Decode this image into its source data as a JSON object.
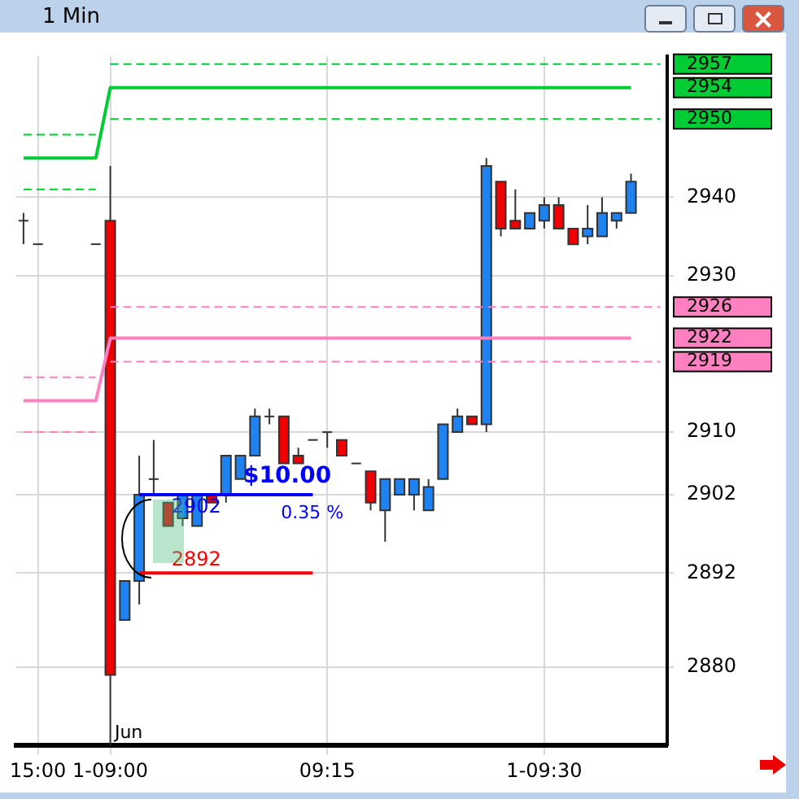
{
  "chart_data": {
    "type": "candlestick",
    "title": "1 Min",
    "categories": [
      null,
      "15:00",
      null,
      null,
      null,
      null,
      "1-09:00",
      null,
      null,
      null,
      null,
      null,
      null,
      null,
      null,
      null,
      null,
      null,
      null,
      null,
      null,
      "09:15",
      null,
      null,
      null,
      null,
      null,
      null,
      null,
      null,
      null,
      null,
      null,
      null,
      null,
      null,
      "1-09:30",
      null,
      null,
      null,
      null,
      null,
      null,
      null,
      null
    ],
    "ohlc": [
      [
        2937,
        2938,
        2934,
        2937
      ],
      [
        2934,
        2934,
        2934,
        2934
      ],
      null,
      null,
      null,
      [
        2934,
        2934,
        2934,
        2934
      ],
      [
        2937,
        2944,
        2870,
        2879
      ],
      [
        2886,
        2891,
        2886,
        2891
      ],
      [
        2891,
        2907,
        2888,
        2902
      ],
      [
        2904,
        2909,
        2902,
        2904
      ],
      [
        2901,
        2901,
        2898,
        2898
      ],
      [
        2899,
        2902,
        2898,
        2902
      ],
      [
        2898,
        2902,
        2898,
        2902
      ],
      [
        2902,
        2902,
        2901,
        2901
      ],
      [
        2902,
        2907,
        2901,
        2907
      ],
      [
        2904,
        2907,
        2904,
        2907
      ],
      [
        2907,
        2913,
        2907,
        2912
      ],
      [
        2912,
        2913,
        2911,
        2912
      ],
      [
        2912,
        2912,
        2906,
        2906
      ],
      [
        2907,
        2908,
        2906,
        2906
      ],
      [
        2909,
        2909,
        2909,
        2909
      ],
      [
        2910,
        2910,
        2908,
        2910
      ],
      [
        2909,
        2909,
        2907,
        2907
      ],
      [
        2906,
        2906,
        2906,
        2906
      ],
      [
        2905,
        2905,
        2900,
        2901
      ],
      [
        2900,
        2904,
        2896,
        2904
      ],
      [
        2902,
        2904,
        2902,
        2904
      ],
      [
        2902,
        2904,
        2900,
        2904
      ],
      [
        2900,
        2904,
        2900,
        2903
      ],
      [
        2904,
        2911,
        2904,
        2911
      ],
      [
        2910,
        2913,
        2910,
        2912
      ],
      [
        2912,
        2912,
        2911,
        2911
      ],
      [
        2911,
        2945,
        2910,
        2944
      ],
      [
        2942,
        2942,
        2935,
        2936
      ],
      [
        2937,
        2941,
        2936,
        2936
      ],
      [
        2936,
        2938,
        2936,
        2938
      ],
      [
        2937,
        2940,
        2936,
        2939
      ],
      [
        2939,
        2940,
        2936,
        2936
      ],
      [
        2936,
        2936,
        2934,
        2934
      ],
      [
        2935,
        2939,
        2934,
        2936
      ],
      [
        2935,
        2940,
        2935,
        2938
      ],
      [
        2937,
        2938,
        2936,
        2938
      ],
      [
        2938,
        2943,
        2938,
        2942
      ],
      null,
      null
    ],
    "colors": [
      "#333333",
      "#333333",
      null,
      null,
      null,
      "#333333",
      "#f00000",
      "#1e82f0",
      "#1e82f0",
      "#333333",
      "#f00000",
      "#1e82f0",
      "#1e82f0",
      "#f00000",
      "#1e82f0",
      "#1e82f0",
      "#1e82f0",
      "#333333",
      "#f00000",
      "#f00000",
      "#333333",
      "#333333",
      "#f00000",
      "#333333",
      "#f00000",
      "#1e82f0",
      "#1e82f0",
      "#1e82f0",
      "#1e82f0",
      "#1e82f0",
      "#1e82f0",
      "#f00000",
      "#1e82f0",
      "#f00000",
      "#f00000",
      "#1e82f0",
      "#1e82f0",
      "#f00000",
      "#f00000",
      "#1e82f0",
      "#1e82f0",
      "#1e82f0",
      "#1e82f0",
      null,
      null
    ],
    "series": [
      {
        "type": "line",
        "color": "#00cc33",
        "values": [
          2945,
          2945,
          2945,
          2945,
          2945,
          2945,
          2954,
          2954,
          2954,
          2954,
          2954,
          2954,
          2954,
          2954,
          2954,
          2954,
          2954,
          2954,
          2954,
          2954,
          2954,
          2954,
          2954,
          2954,
          2954,
          2954,
          2954,
          2954,
          2954,
          2954,
          2954,
          2954,
          2954,
          2954,
          2954,
          2954,
          2954,
          2954,
          2954,
          2954,
          2954,
          2954,
          2954,
          null,
          null
        ]
      },
      {
        "type": "line",
        "color": "#00cc33",
        "line_style": "dashed",
        "values": [
          2948,
          2948,
          2948,
          2948,
          2948,
          2948,
          null,
          null,
          null,
          null,
          null,
          null,
          null,
          null,
          null,
          null,
          null,
          null,
          null,
          null,
          null,
          null,
          null,
          null,
          null,
          null,
          null,
          null,
          null,
          null,
          null,
          null,
          null,
          null,
          null,
          null,
          null,
          null,
          null,
          null,
          null,
          null,
          null,
          null,
          null
        ]
      },
      {
        "type": "line",
        "color": "#00cc33",
        "line_style": "dashed",
        "values": [
          2941,
          2941,
          2941,
          2941,
          2941,
          2941,
          null,
          null,
          null,
          null,
          null,
          null,
          null,
          null,
          null,
          null,
          null,
          null,
          null,
          null,
          null,
          null,
          null,
          null,
          null,
          null,
          null,
          null,
          null,
          null,
          null,
          null,
          null,
          null,
          null,
          null,
          null,
          null,
          null,
          null,
          null,
          null,
          null,
          null,
          null
        ]
      },
      {
        "type": "line",
        "color": "#00cc33",
        "line_style": "dashed",
        "values": [
          null,
          null,
          null,
          null,
          null,
          null,
          2957,
          2957,
          2957,
          2957,
          2957,
          2957,
          2957,
          2957,
          2957,
          2957,
          2957,
          2957,
          2957,
          2957,
          2957,
          2957,
          2957,
          2957,
          2957,
          2957,
          2957,
          2957,
          2957,
          2957,
          2957,
          2957,
          2957,
          2957,
          2957,
          2957,
          2957,
          2957,
          2957,
          2957,
          2957,
          2957,
          2957,
          2957,
          2957
        ]
      },
      {
        "type": "line",
        "color": "#00cc33",
        "line_style": "dashed",
        "values": [
          null,
          null,
          null,
          null,
          null,
          null,
          2950,
          2950,
          2950,
          2950,
          2950,
          2950,
          2950,
          2950,
          2950,
          2950,
          2950,
          2950,
          2950,
          2950,
          2950,
          2950,
          2950,
          2950,
          2950,
          2950,
          2950,
          2950,
          2950,
          2950,
          2950,
          2950,
          2950,
          2950,
          2950,
          2950,
          2950,
          2950,
          2950,
          2950,
          2950,
          2950,
          2950,
          2950,
          2950
        ]
      },
      {
        "type": "line",
        "color": "#ff80c0",
        "values": [
          2914,
          2914,
          2914,
          2914,
          2914,
          2914,
          2922,
          2922,
          2922,
          2922,
          2922,
          2922,
          2922,
          2922,
          2922,
          2922,
          2922,
          2922,
          2922,
          2922,
          2922,
          2922,
          2922,
          2922,
          2922,
          2922,
          2922,
          2922,
          2922,
          2922,
          2922,
          2922,
          2922,
          2922,
          2922,
          2922,
          2922,
          2922,
          2922,
          2922,
          2922,
          2922,
          2922,
          null,
          null
        ]
      },
      {
        "type": "line",
        "color": "#ff80c0",
        "line_style": "dashed",
        "values": [
          2917,
          2917,
          2917,
          2917,
          2917,
          2917,
          null,
          null,
          null,
          null,
          null,
          null,
          null,
          null,
          null,
          null,
          null,
          null,
          null,
          null,
          null,
          null,
          null,
          null,
          null,
          null,
          null,
          null,
          null,
          null,
          null,
          null,
          null,
          null,
          null,
          null,
          null,
          null,
          null,
          null,
          null,
          null,
          null,
          null,
          null
        ]
      },
      {
        "type": "line",
        "color": "#ff80c0",
        "line_style": "dashed",
        "values": [
          2910,
          2910,
          2910,
          2910,
          2910,
          2910,
          null,
          null,
          null,
          null,
          null,
          null,
          null,
          null,
          null,
          null,
          null,
          null,
          null,
          null,
          null,
          null,
          null,
          null,
          null,
          null,
          null,
          null,
          null,
          null,
          null,
          null,
          null,
          null,
          null,
          null,
          null,
          null,
          null,
          null,
          null,
          null,
          null,
          null,
          null
        ]
      },
      {
        "type": "line",
        "color": "#ff80c0",
        "line_style": "dashed",
        "values": [
          null,
          null,
          null,
          null,
          null,
          null,
          2926,
          2926,
          2926,
          2926,
          2926,
          2926,
          2926,
          2926,
          2926,
          2926,
          2926,
          2926,
          2926,
          2926,
          2926,
          2926,
          2926,
          2926,
          2926,
          2926,
          2926,
          2926,
          2926,
          2926,
          2926,
          2926,
          2926,
          2926,
          2926,
          2926,
          2926,
          2926,
          2926,
          2926,
          2926,
          2926,
          2926,
          2926,
          2926
        ]
      },
      {
        "type": "line",
        "color": "#ff80c0",
        "line_style": "dashed",
        "values": [
          null,
          null,
          null,
          null,
          null,
          null,
          2919,
          2919,
          2919,
          2919,
          2919,
          2919,
          2919,
          2919,
          2919,
          2919,
          2919,
          2919,
          2919,
          2919,
          2919,
          2919,
          2919,
          2919,
          2919,
          2919,
          2919,
          2919,
          2919,
          2919,
          2919,
          2919,
          2919,
          2919,
          2919,
          2919,
          2919,
          2919,
          2919,
          2919,
          2919,
          2919,
          2919,
          2919,
          2919
        ]
      },
      {
        "type": "line",
        "color": "#0000ff",
        "values": [
          null,
          null,
          null,
          null,
          null,
          null,
          null,
          null,
          2902,
          2902,
          2902,
          2902,
          2902,
          2902,
          2902,
          2902,
          2902,
          2902,
          2902,
          2902,
          2902,
          null,
          null,
          null,
          null,
          null,
          null,
          null,
          null,
          null,
          null,
          null,
          null,
          null,
          null,
          null,
          null,
          null,
          null,
          null,
          null,
          null,
          null,
          null,
          null
        ],
        "value_labels": [
          null,
          null,
          null,
          null,
          null,
          null,
          null,
          null,
          null,
          null,
          "2902",
          null,
          null,
          null,
          null,
          null,
          null,
          null,
          null,
          null,
          null,
          null,
          null,
          null,
          null,
          null,
          null,
          null,
          null,
          null,
          null,
          null,
          null,
          null,
          null,
          null,
          null,
          null,
          null,
          null,
          null,
          null,
          null,
          null,
          null
        ]
      },
      {
        "type": "line",
        "color": "#ff0000",
        "values": [
          null,
          null,
          null,
          null,
          null,
          null,
          null,
          null,
          2892,
          2892,
          2892,
          2892,
          2892,
          2892,
          2892,
          2892,
          2892,
          2892,
          2892,
          2892,
          2892,
          null,
          null,
          null,
          null,
          null,
          null,
          null,
          null,
          null,
          null,
          null,
          null,
          null,
          null,
          null,
          null,
          null,
          null,
          null,
          null,
          null,
          null,
          null,
          null
        ],
        "value_labels": [
          null,
          null,
          null,
          null,
          null,
          null,
          null,
          null,
          null,
          null,
          "2892",
          null,
          null,
          null,
          null,
          null,
          null,
          null,
          null,
          null,
          null,
          null,
          null,
          null,
          null,
          null,
          null,
          null,
          null,
          null,
          null,
          null,
          null,
          null,
          null,
          null,
          null,
          null,
          null,
          null,
          null,
          null,
          null,
          null,
          null
        ]
      }
    ],
    "marker": "none",
    "ylim": [
      2870,
      2958
    ],
    "yticks": [
      2880,
      2892,
      2902,
      2910,
      2919,
      2922,
      2926,
      2930,
      2940,
      2950,
      2954,
      2957
    ],
    "grid": true,
    "legend": false,
    "annotations": [
      "$10.00",
      "0.35 %",
      "Jun"
    ]
  }
}
